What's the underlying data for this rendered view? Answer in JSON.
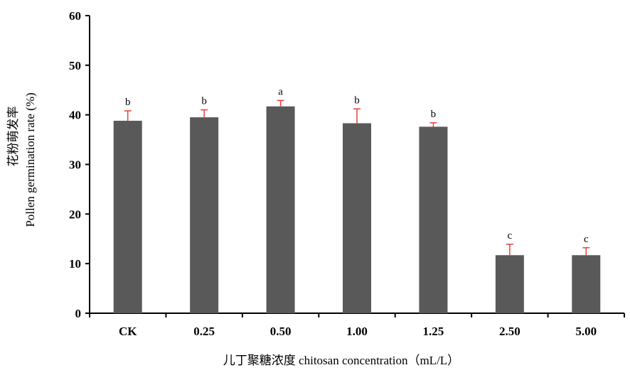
{
  "chart_data": {
    "type": "bar",
    "xlabel": "儿丁聚糖浓度 chitosan concentration（mL/L）",
    "ylabel_cn": "花粉萌发率",
    "ylabel_en": "Pollen germination rate (%)",
    "categories": [
      "CK",
      "0.25",
      "0.50",
      "1.00",
      "1.25",
      "2.50",
      "5.00"
    ],
    "values": [
      38.8,
      39.5,
      41.7,
      38.3,
      37.6,
      11.7,
      11.7
    ],
    "error_upper": [
      2.0,
      1.5,
      1.2,
      2.9,
      0.8,
      2.2,
      1.5
    ],
    "significance": [
      "b",
      "b",
      "a",
      "b",
      "b",
      "c",
      "c"
    ],
    "ylim": [
      0,
      60
    ],
    "yticks": [
      0,
      10,
      20,
      30,
      40,
      50,
      60
    ],
    "grid": false,
    "colors": {
      "bar": "#595959",
      "error_bar": "#e8413c",
      "axis": "#000000"
    }
  }
}
